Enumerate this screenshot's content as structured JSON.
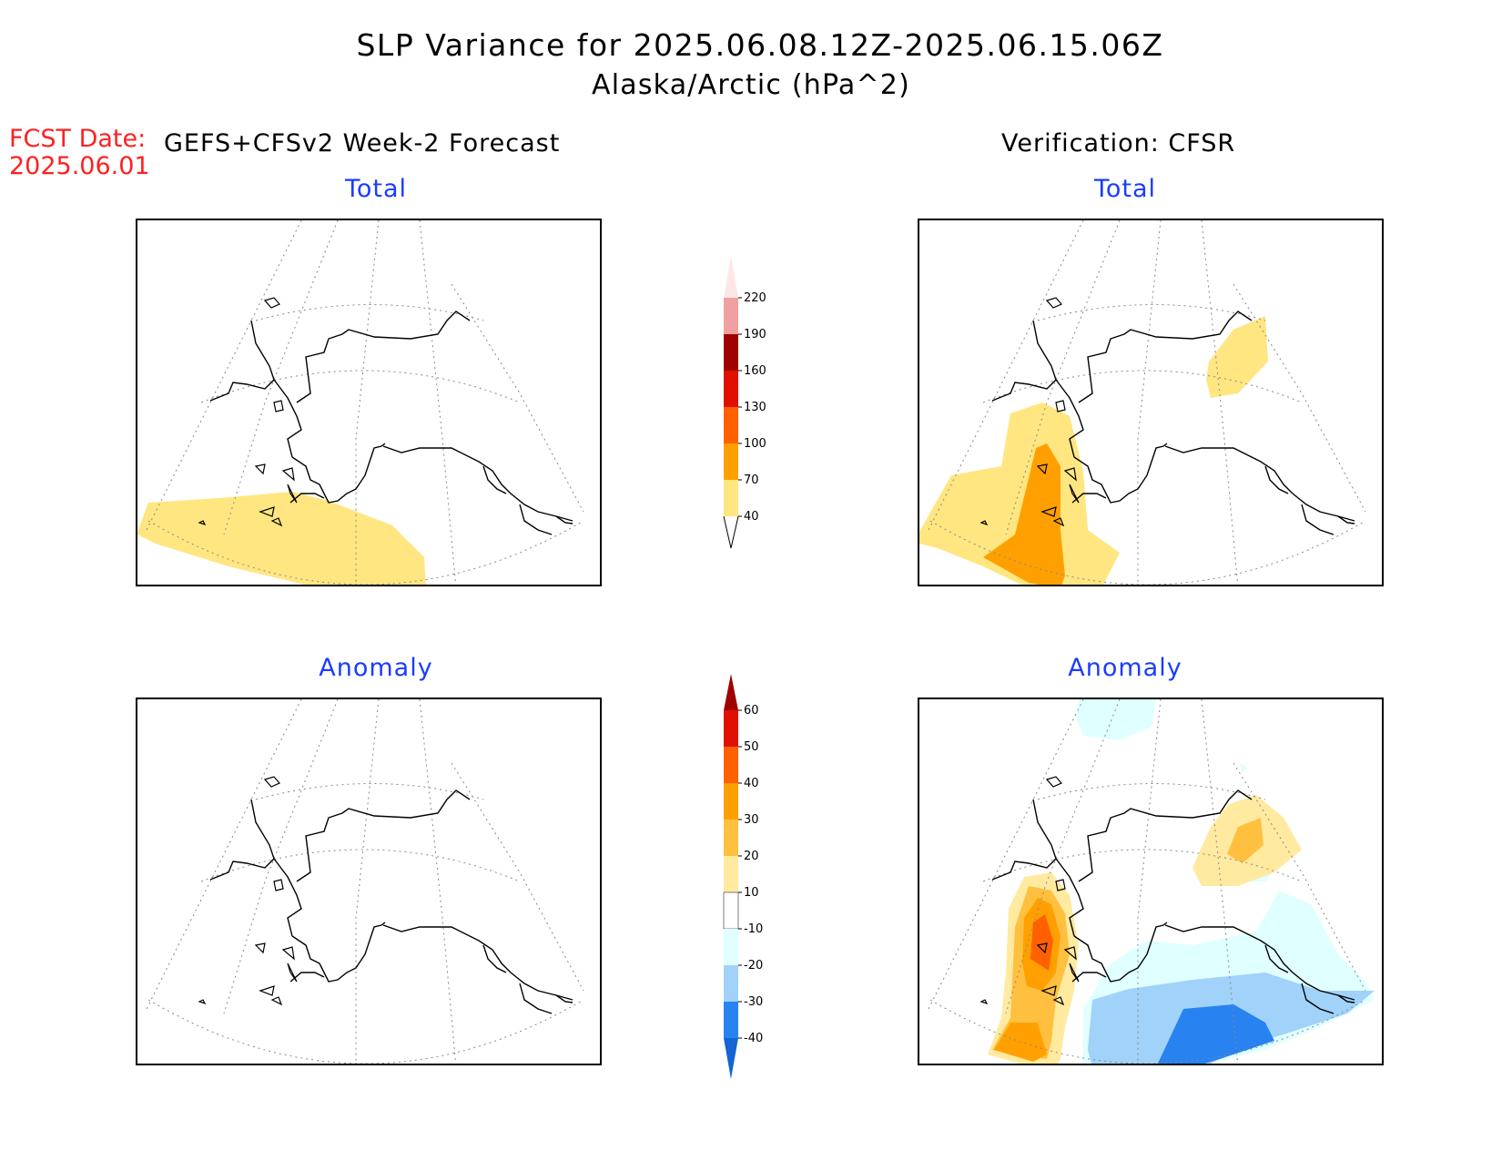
{
  "header": {
    "title_line1": "SLP Variance for 2025.06.08.12Z-2025.06.15.06Z",
    "title_line2": "Alaska/Arctic (hPa^2)",
    "fcst_label": "FCST Date:",
    "fcst_date": "2025.06.01",
    "left_heading": "GEFS+CFSv2 Week-2 Forecast",
    "right_heading": "Verification: CFSR"
  },
  "panels": {
    "forecast_total_title": "Total",
    "forecast_anomaly_title": "Anomaly",
    "verification_total_title": "Total",
    "verification_anomaly_title": "Anomaly"
  },
  "colorbar_total": {
    "levels": [
      "40",
      "70",
      "100",
      "130",
      "160",
      "190",
      "220"
    ],
    "colors": [
      "#ffe680",
      "#ffa000",
      "#ff6000",
      "#e01000",
      "#a00000",
      "#f0a0a0",
      "#ffe6e6"
    ]
  },
  "colorbar_anomaly": {
    "levels": [
      "60",
      "50",
      "40",
      "30",
      "20",
      "10",
      "-10",
      "-20",
      "-30",
      "-40"
    ],
    "colors": [
      "#a00000",
      "#e01000",
      "#ff6000",
      "#ffa000",
      "#ffc040",
      "#ffeaa0",
      "#ffffff",
      "#e0ffff",
      "#a0d2fa",
      "#2882f0",
      "#1464d2"
    ]
  },
  "colors": {
    "title_blue": "#1a3cff",
    "fcst_red": "#ff2020"
  }
}
